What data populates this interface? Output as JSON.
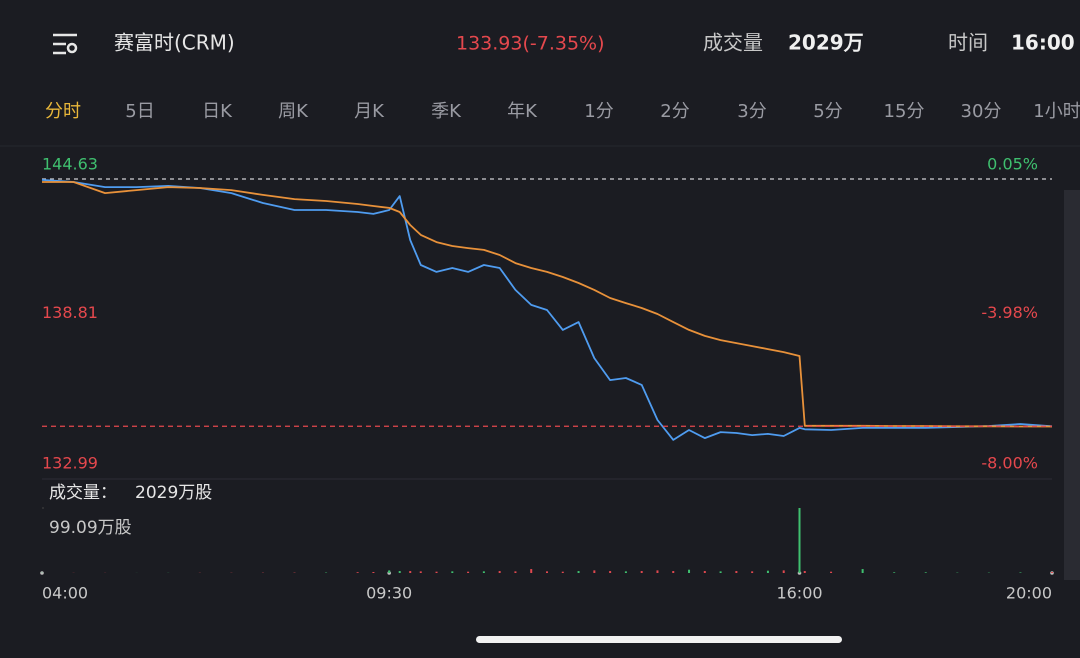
{
  "header": {
    "title": "赛富时(CRM)",
    "quote": "133.93(-7.35%)",
    "volume_label": "成交量",
    "volume": "2029万",
    "time_label": "时间",
    "time": "16:00"
  },
  "tabs": {
    "items": [
      "分时",
      "5日",
      "日K",
      "周K",
      "月K",
      "季K",
      "年K",
      "1分",
      "2分",
      "3分",
      "5分",
      "15分",
      "30分",
      "1小时"
    ],
    "active": 0
  },
  "chart_data": [
    {
      "type": "line",
      "x": [
        "04:00",
        "04:30",
        "05:00",
        "05:30",
        "06:00",
        "06:30",
        "07:00",
        "07:30",
        "08:00",
        "08:30",
        "09:00",
        "09:15",
        "09:30",
        "09:40",
        "09:50",
        "10:00",
        "10:15",
        "10:30",
        "10:45",
        "11:00",
        "11:15",
        "11:30",
        "11:45",
        "12:00",
        "12:15",
        "12:30",
        "12:45",
        "13:00",
        "13:15",
        "13:30",
        "13:45",
        "14:00",
        "14:15",
        "14:30",
        "14:45",
        "15:00",
        "15:15",
        "15:30",
        "15:45",
        "16:00",
        "16:05",
        "16:30",
        "17:00",
        "17:30",
        "18:00",
        "18:30",
        "19:00",
        "19:30",
        "20:00"
      ],
      "series": [
        {
          "color": "#4f9cf0",
          "values": [
            144.59,
            144.5,
            144.28,
            144.28,
            144.33,
            144.24,
            144.02,
            143.59,
            143.29,
            143.29,
            143.2,
            143.12,
            143.29,
            143.89,
            141.99,
            140.91,
            140.61,
            140.78,
            140.61,
            140.91,
            140.78,
            139.83,
            139.18,
            138.96,
            138.1,
            138.44,
            136.88,
            135.93,
            136.02,
            135.72,
            134.2,
            133.34,
            133.77,
            133.42,
            133.68,
            133.64,
            133.55,
            133.6,
            133.51,
            133.86,
            133.8,
            133.77,
            133.86,
            133.86,
            133.86,
            133.9,
            133.94,
            134.03,
            133.93
          ]
        },
        {
          "color": "#e8913a",
          "values": [
            144.5,
            144.5,
            144.02,
            144.15,
            144.28,
            144.24,
            144.15,
            143.94,
            143.76,
            143.68,
            143.55,
            143.46,
            143.38,
            143.2,
            142.64,
            142.21,
            141.9,
            141.73,
            141.64,
            141.56,
            141.34,
            140.99,
            140.78,
            140.61,
            140.39,
            140.13,
            139.83,
            139.48,
            139.26,
            139.05,
            138.79,
            138.44,
            138.1,
            137.84,
            137.66,
            137.53,
            137.4,
            137.27,
            137.14,
            136.97,
            133.95,
            133.95,
            133.95,
            133.94,
            133.94,
            133.93,
            133.93,
            133.92,
            133.92
          ]
        }
      ],
      "xlim": [
        "04:00",
        "20:00"
      ],
      "xticks": [
        "04:00",
        "09:30",
        "16:00",
        "20:00"
      ],
      "ylim": [
        132.99,
        144.63
      ],
      "yticks": [
        132.99,
        138.81,
        144.63
      ],
      "y2lim": [
        -8.0,
        0.05
      ],
      "y2ticks": [
        {
          "value": -8.0,
          "label": "-8.00%"
        },
        {
          "value": -3.98,
          "label": "-3.98%"
        },
        {
          "value": 0.05,
          "label": "0.05%"
        }
      ],
      "up_color": "#3fbf6f",
      "down_color": "#e0484f"
    },
    {
      "type": "bar",
      "title": "成交量：",
      "total": "2029万股",
      "x": [
        "04:00",
        "04:30",
        "05:00",
        "05:30",
        "06:00",
        "06:30",
        "07:00",
        "07:30",
        "08:00",
        "08:30",
        "09:00",
        "09:15",
        "09:30",
        "09:40",
        "09:50",
        "10:00",
        "10:15",
        "10:30",
        "10:45",
        "11:00",
        "11:15",
        "11:30",
        "11:45",
        "12:00",
        "12:15",
        "12:30",
        "12:45",
        "13:00",
        "13:15",
        "13:30",
        "13:45",
        "14:00",
        "14:15",
        "14:30",
        "14:45",
        "15:00",
        "15:15",
        "15:30",
        "15:45",
        "16:00",
        "16:05",
        "16:30",
        "17:00",
        "17:30",
        "18:00",
        "18:30",
        "19:00",
        "19:30",
        "20:00"
      ],
      "values": [
        0.3,
        0.2,
        0.2,
        0.1,
        0.2,
        0.3,
        0.3,
        0.4,
        0.5,
        0.6,
        1.2,
        1.5,
        4,
        3,
        3,
        2.5,
        2,
        2.5,
        2,
        2.5,
        3,
        2.5,
        6,
        2.5,
        2,
        3,
        4,
        3,
        2.5,
        3,
        4,
        3,
        5,
        3,
        2.5,
        3,
        2.5,
        3.5,
        4,
        99.09,
        3,
        2,
        6,
        1,
        1,
        0.5,
        0.5,
        0.8,
        1.5
      ],
      "ylim": [
        0,
        99.09
      ],
      "yticks": [
        {
          "value": 99.09,
          "label": "99.09万股"
        }
      ],
      "up_color": "#3fbf6f",
      "down_color": "#e0484f"
    }
  ]
}
